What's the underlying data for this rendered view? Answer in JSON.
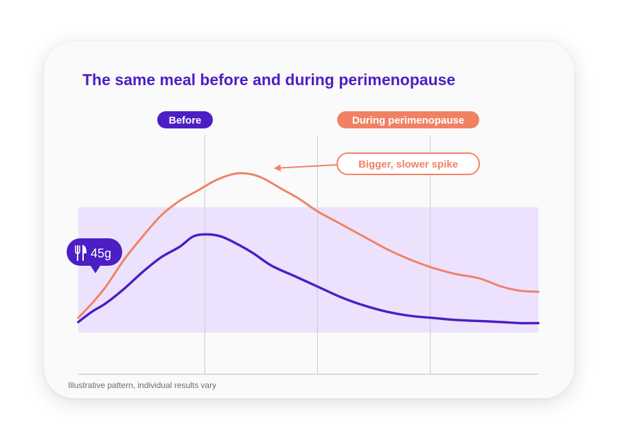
{
  "card": {
    "title": "The same meal before and during perimenopause",
    "footnote": "Illustrative pattern, individual results vary"
  },
  "chart_data": {
    "type": "line",
    "title": "The same meal before and during perimenopause",
    "xlabel": "",
    "ylabel": "",
    "grid": "vertical lines only",
    "phase_labels": [
      "Before",
      "During perimenopause"
    ],
    "annotation": "Bigger, slower spike",
    "meal_marker": {
      "icon": "fork-knife-icon",
      "label": "45g"
    },
    "colors": {
      "before": "#4b1fc4",
      "during": "#f08263",
      "range_band": "#ece2fd",
      "grid": "#cfcfd4",
      "axis": "#cfcfd4"
    },
    "series": [
      {
        "key": "before",
        "x": [
          0,
          3,
          6,
          10,
          14,
          18,
          22,
          25,
          28,
          31,
          34,
          38,
          42,
          47,
          52,
          57,
          62,
          67,
          72,
          77,
          82,
          87,
          92,
          96,
          100
        ],
        "y": [
          25,
          30,
          34,
          41,
          49,
          56,
          61,
          66,
          67,
          66,
          63,
          58,
          52,
          47,
          42,
          37,
          33,
          30,
          28,
          27,
          26,
          25.5,
          25,
          24.5,
          24.5
        ]
      },
      {
        "key": "during",
        "x": [
          0,
          3,
          6,
          10,
          14,
          18,
          22,
          26,
          30,
          34,
          37,
          40,
          44,
          48,
          52,
          57,
          62,
          67,
          72,
          77,
          82,
          87,
          92,
          96,
          100
        ],
        "y": [
          27,
          34,
          42,
          55,
          66,
          76,
          83,
          88,
          93,
          96,
          96,
          94,
          89,
          84,
          78,
          72,
          66,
          60,
          55,
          51,
          48,
          46,
          42,
          40,
          39.5
        ]
      }
    ],
    "x_range": [
      0,
      100
    ],
    "y_range": [
      0,
      120
    ],
    "range_band": [
      20,
      80
    ],
    "vertical_gridlines": [
      27.5,
      52,
      76.5
    ],
    "meal_x": 4,
    "annotation_target": {
      "x": 41,
      "y": 96
    }
  }
}
